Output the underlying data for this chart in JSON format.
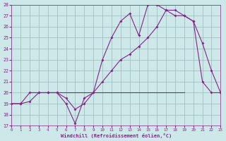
{
  "xlabel": "Windchill (Refroidissement éolien,°C)",
  "bg_color": "#cce8e8",
  "line_color": "#882288",
  "grid_color": "#99bbbb",
  "xlim": [
    0,
    23
  ],
  "ylim": [
    17,
    28
  ],
  "yticks": [
    17,
    18,
    19,
    20,
    21,
    22,
    23,
    24,
    25,
    26,
    27,
    28
  ],
  "xticks": [
    0,
    1,
    2,
    3,
    4,
    5,
    6,
    7,
    8,
    9,
    10,
    11,
    12,
    13,
    14,
    15,
    16,
    17,
    18,
    19,
    20,
    21,
    22,
    23
  ],
  "series1_x": [
    0,
    1,
    2,
    3,
    4,
    5,
    6,
    7,
    8,
    9,
    10,
    11,
    12,
    13,
    14,
    15,
    16,
    17,
    18,
    19,
    20,
    21,
    22,
    23
  ],
  "series1_y": [
    19,
    19,
    20,
    20,
    20,
    20,
    19,
    17.2,
    19.5,
    20,
    23,
    25,
    26.5,
    27.2,
    25.2,
    28,
    28,
    27.5,
    27,
    27,
    26.5,
    21,
    20,
    20
  ],
  "series2_x": [
    0,
    1,
    2,
    3,
    4,
    5,
    6,
    7,
    8,
    9,
    10,
    11,
    12,
    13,
    14,
    15,
    16,
    17,
    18,
    19,
    20,
    21,
    22,
    23
  ],
  "series2_y": [
    19,
    19,
    19.2,
    20,
    20,
    20,
    19.5,
    18.5,
    19,
    20,
    21,
    22,
    23,
    23.5,
    24.2,
    25,
    26,
    27.5,
    27.5,
    27,
    26.5,
    24.5,
    22,
    20
  ],
  "hline_y": 20,
  "hline_x_start": 2,
  "hline_x_end": 19
}
